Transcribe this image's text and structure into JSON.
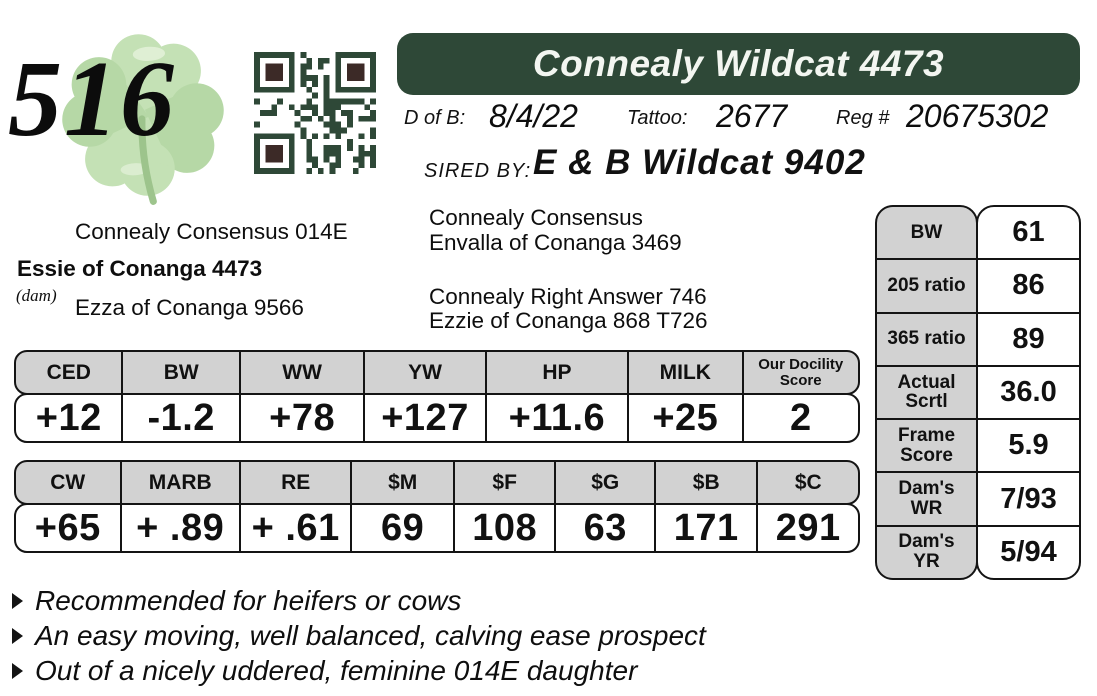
{
  "lot": {
    "number": "516"
  },
  "banner": {
    "title": "Connealy Wildcat 4473"
  },
  "info": {
    "dob_label": "D of B:",
    "dob": "8/4/22",
    "tattoo_label": "Tattoo:",
    "tattoo": "2677",
    "reg_label": "Reg #",
    "reg": "20675302"
  },
  "sire": {
    "label": "SIRED BY:",
    "name": "E & B Wildcat 9402"
  },
  "pedigree": {
    "maternal_grandsire": "Connealy Consensus 014E",
    "dam": "Essie of Conanga 4473",
    "dam_tag": "(dam)",
    "maternal_granddam": "Ezza of Conanga 9566",
    "extended": [
      "Connealy Consensus",
      "Envalla of Conanga 3469",
      "Connealy Right Answer 746",
      "Ezzie of Conanga 868 T726"
    ]
  },
  "tables": {
    "epd1": {
      "headers": [
        "CED",
        "BW",
        "WW",
        "YW",
        "HP",
        "MILK",
        "Our Docility Score"
      ],
      "values": [
        "+12",
        "-1.2",
        "+78",
        "+127",
        "+11.6",
        "+25",
        "2"
      ]
    },
    "epd2": {
      "headers": [
        "CW",
        "MARB",
        "RE",
        "$M",
        "$F",
        "$G",
        "$B",
        "$C"
      ],
      "values": [
        "+65",
        "+ .89",
        "+ .61",
        "69",
        "108",
        "63",
        "171",
        "291"
      ]
    },
    "stats": {
      "rows": [
        {
          "label": "BW",
          "value": "61"
        },
        {
          "label": "205 ratio",
          "value": "86"
        },
        {
          "label": "365 ratio",
          "value": "89"
        },
        {
          "label": "Actual Scrtl",
          "value": "36.0"
        },
        {
          "label": "Frame Score",
          "value": "5.9"
        },
        {
          "label": "Dam's WR",
          "value": "7/93"
        },
        {
          "label": "Dam's YR",
          "value": "5/94"
        }
      ]
    }
  },
  "notes": {
    "items": [
      "Recommended for heifers or cows",
      "An easy moving, well balanced, calving ease prospect",
      "Out of a nicely uddered, feminine 014E daughter"
    ]
  },
  "colors": {
    "banner_green": "#2e4837",
    "qr_green": "#2e4837",
    "qr_finder_dark": "#3c2a27",
    "clover_green": "#c4e1b5",
    "table_header_gray": "#d2d2d2"
  }
}
